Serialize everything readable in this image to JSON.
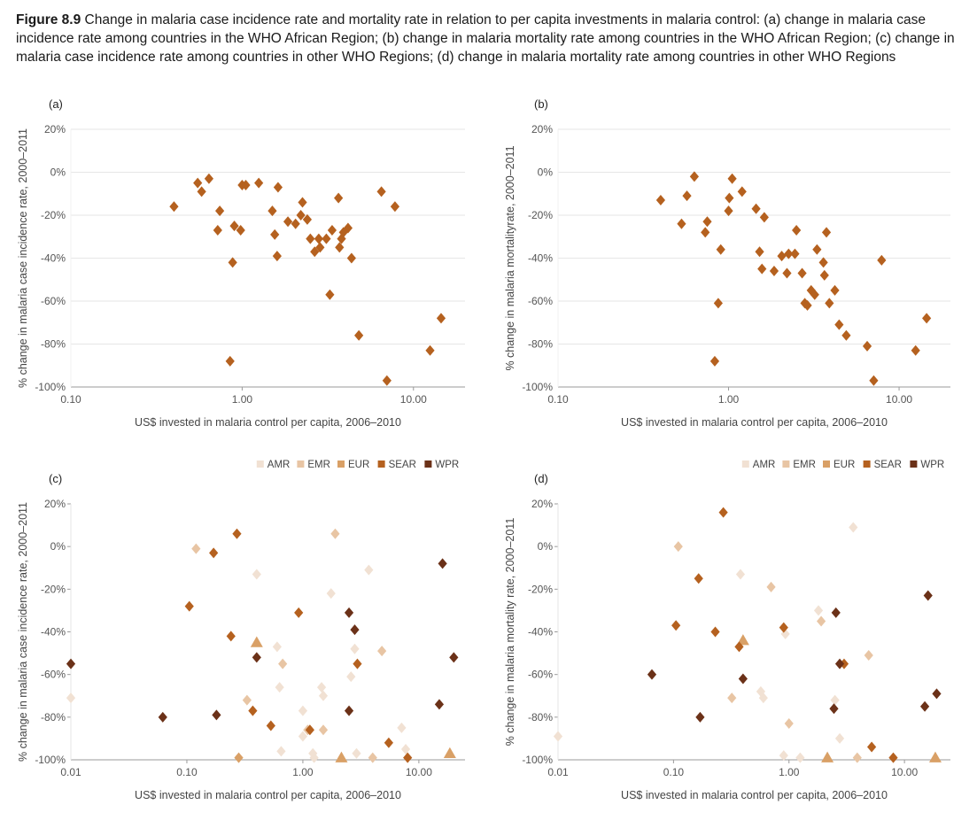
{
  "figure": {
    "number": "Figure 8.9",
    "caption": "Change in malaria case incidence rate and mortality rate in relation to per capita investments in malaria control: (a) change in malaria case incidence rate among countries in the WHO African Region; (b) change in malaria mortality rate among countries in the WHO African Region; (c) change in malaria case incidence rate among countries in other WHO Regions; (d) change in malaria mortality rate among countries in other WHO Regions"
  },
  "colors": {
    "AFR": "#b5611f",
    "AMR": "#f1e1d3",
    "EMR": "#e8c5a4",
    "EUR": "#d9a066",
    "SEAR": "#b5611f",
    "WPR": "#6b3118",
    "grid": "#e6e6e6",
    "axis": "#9a9a9a"
  },
  "legend": [
    {
      "key": "AMR",
      "label": "AMR"
    },
    {
      "key": "EMR",
      "label": "EMR"
    },
    {
      "key": "EUR",
      "label": "EUR"
    },
    {
      "key": "SEAR",
      "label": "SEAR"
    },
    {
      "key": "WPR",
      "label": "WPR"
    }
  ],
  "chart_data": [
    {
      "id": "a",
      "panel_label": "(a)",
      "type": "scatter",
      "xlabel": "US$ invested in malaria control per capita, 2006–2010",
      "ylabel": "% change in malaria case incidence rate, 2000–2011",
      "x_scale": "log",
      "xlim": [
        0.1,
        20
      ],
      "ylim": [
        -100,
        20
      ],
      "xticks": [
        {
          "v": 0.1,
          "label": "0.10"
        },
        {
          "v": 1,
          "label": "1.00"
        },
        {
          "v": 10,
          "label": "10.00"
        }
      ],
      "yticks": [
        {
          "v": 20,
          "label": "20%"
        },
        {
          "v": 0,
          "label": "0%"
        },
        {
          "v": -20,
          "label": "-20%"
        },
        {
          "v": -40,
          "label": "-40%"
        },
        {
          "v": -60,
          "label": "-60%"
        },
        {
          "v": -80,
          "label": "-80%"
        },
        {
          "v": -100,
          "label": "-100%"
        }
      ],
      "grid": true,
      "series": [
        {
          "region": "AFR",
          "shape": "diamond",
          "points": [
            [
              0.4,
              -16
            ],
            [
              0.55,
              -5
            ],
            [
              0.58,
              -9
            ],
            [
              0.64,
              -3
            ],
            [
              0.72,
              -27
            ],
            [
              0.74,
              -18
            ],
            [
              0.85,
              -88
            ],
            [
              0.88,
              -42
            ],
            [
              0.9,
              -25
            ],
            [
              0.98,
              -27
            ],
            [
              1.0,
              -6
            ],
            [
              1.05,
              -6
            ],
            [
              1.25,
              -5
            ],
            [
              1.5,
              -18
            ],
            [
              1.55,
              -29
            ],
            [
              1.6,
              -39
            ],
            [
              1.62,
              -7
            ],
            [
              1.85,
              -23
            ],
            [
              2.05,
              -24
            ],
            [
              2.2,
              -20
            ],
            [
              2.25,
              -14
            ],
            [
              2.4,
              -22
            ],
            [
              2.5,
              -31
            ],
            [
              2.65,
              -37
            ],
            [
              2.8,
              -31
            ],
            [
              2.85,
              -35
            ],
            [
              3.1,
              -31
            ],
            [
              3.25,
              -57
            ],
            [
              3.35,
              -27
            ],
            [
              3.65,
              -12
            ],
            [
              3.7,
              -35
            ],
            [
              3.8,
              -31
            ],
            [
              3.9,
              -28
            ],
            [
              4.15,
              -26
            ],
            [
              4.35,
              -40
            ],
            [
              4.8,
              -76
            ],
            [
              6.5,
              -9
            ],
            [
              7.0,
              -97
            ],
            [
              7.8,
              -16
            ],
            [
              12.5,
              -83
            ],
            [
              14.5,
              -68
            ]
          ]
        }
      ]
    },
    {
      "id": "b",
      "panel_label": "(b)",
      "type": "scatter",
      "xlabel": "US$ invested in malaria control per capita, 2006–2010",
      "ylabel": "% change in malaria mortalityrate, 2000–2011",
      "x_scale": "log",
      "xlim": [
        0.1,
        20
      ],
      "ylim": [
        -100,
        20
      ],
      "xticks": [
        {
          "v": 0.1,
          "label": "0.10"
        },
        {
          "v": 1,
          "label": "1.00"
        },
        {
          "v": 10,
          "label": "10.00"
        }
      ],
      "yticks": [
        {
          "v": 20,
          "label": "20%"
        },
        {
          "v": 0,
          "label": "0%"
        },
        {
          "v": -20,
          "label": "-20%"
        },
        {
          "v": -40,
          "label": "-40%"
        },
        {
          "v": -60,
          "label": "-60%"
        },
        {
          "v": -80,
          "label": "-80%"
        },
        {
          "v": -100,
          "label": "-100%"
        }
      ],
      "grid": true,
      "series": [
        {
          "region": "AFR",
          "shape": "diamond",
          "points": [
            [
              0.4,
              -13
            ],
            [
              0.53,
              -24
            ],
            [
              0.57,
              -11
            ],
            [
              0.63,
              -2
            ],
            [
              0.73,
              -28
            ],
            [
              0.75,
              -23
            ],
            [
              0.83,
              -88
            ],
            [
              0.87,
              -61
            ],
            [
              0.9,
              -36
            ],
            [
              1.0,
              -18
            ],
            [
              1.01,
              -12
            ],
            [
              1.05,
              -3
            ],
            [
              1.2,
              -9
            ],
            [
              1.45,
              -17
            ],
            [
              1.52,
              -37
            ],
            [
              1.57,
              -45
            ],
            [
              1.62,
              -21
            ],
            [
              1.85,
              -46
            ],
            [
              2.05,
              -39
            ],
            [
              2.2,
              -47
            ],
            [
              2.25,
              -38
            ],
            [
              2.45,
              -38
            ],
            [
              2.5,
              -27
            ],
            [
              2.7,
              -47
            ],
            [
              2.8,
              -61
            ],
            [
              2.9,
              -62
            ],
            [
              3.05,
              -55
            ],
            [
              3.2,
              -57
            ],
            [
              3.3,
              -36
            ],
            [
              3.6,
              -42
            ],
            [
              3.65,
              -48
            ],
            [
              3.75,
              -28
            ],
            [
              3.9,
              -61
            ],
            [
              4.2,
              -55
            ],
            [
              4.45,
              -71
            ],
            [
              4.9,
              -76
            ],
            [
              6.5,
              -81
            ],
            [
              7.1,
              -97
            ],
            [
              7.9,
              -41
            ],
            [
              12.5,
              -83
            ],
            [
              14.5,
              -68
            ]
          ]
        }
      ]
    },
    {
      "id": "c",
      "panel_label": "(c)",
      "type": "scatter",
      "xlabel": "US$ invested in malaria control per capita, 2006–2010",
      "ylabel": "% change in malaria case incidence rate, 2000–2011",
      "x_scale": "log",
      "xlim": [
        0.01,
        25
      ],
      "ylim": [
        -100,
        20
      ],
      "xticks": [
        {
          "v": 0.01,
          "label": "0.01"
        },
        {
          "v": 0.1,
          "label": "0.10"
        },
        {
          "v": 1,
          "label": "1.00"
        },
        {
          "v": 10,
          "label": "10.00"
        }
      ],
      "yticks": [
        {
          "v": 20,
          "label": "20%"
        },
        {
          "v": 0,
          "label": "0%"
        },
        {
          "v": -20,
          "label": "-20%"
        },
        {
          "v": -40,
          "label": "-40%"
        },
        {
          "v": -60,
          "label": "-60%"
        },
        {
          "v": -80,
          "label": "-80%"
        },
        {
          "v": -100,
          "label": "-100%"
        }
      ],
      "grid": false,
      "legend_position": "top-right",
      "series": [
        {
          "region": "AMR",
          "shape": "diamond",
          "points": [
            [
              0.01,
              -71
            ],
            [
              0.4,
              -13
            ],
            [
              0.6,
              -47
            ],
            [
              0.63,
              -66
            ],
            [
              0.65,
              -96
            ],
            [
              1.0,
              -77
            ],
            [
              1.0,
              -89
            ],
            [
              1.22,
              -97
            ],
            [
              1.25,
              -99
            ],
            [
              1.45,
              -66
            ],
            [
              1.5,
              -70
            ],
            [
              1.75,
              -22
            ],
            [
              2.6,
              -61
            ],
            [
              2.8,
              -48
            ],
            [
              2.9,
              -97
            ],
            [
              3.7,
              -11
            ],
            [
              7.1,
              -85
            ],
            [
              7.7,
              -95
            ]
          ]
        },
        {
          "region": "EMR",
          "shape": "diamond",
          "points": [
            [
              0.12,
              -1
            ],
            [
              0.33,
              -72
            ],
            [
              0.67,
              -55
            ],
            [
              1.1,
              -86
            ],
            [
              1.5,
              -86
            ],
            [
              1.9,
              6
            ],
            [
              4.0,
              -99
            ],
            [
              4.8,
              -49
            ]
          ]
        },
        {
          "region": "EUR",
          "shape": "triangle",
          "points": [
            [
              0.4,
              -45
            ],
            [
              2.15,
              -99
            ],
            [
              18.5,
              -97
            ]
          ]
        },
        {
          "region": "EUR",
          "shape": "diamond",
          "points": [
            [
              0.28,
              -99
            ]
          ]
        },
        {
          "region": "SEAR",
          "shape": "diamond",
          "points": [
            [
              0.105,
              -28
            ],
            [
              0.17,
              -3
            ],
            [
              0.24,
              -42
            ],
            [
              0.27,
              6
            ],
            [
              0.37,
              -77
            ],
            [
              0.53,
              -84
            ],
            [
              0.92,
              -31
            ],
            [
              1.15,
              -86
            ],
            [
              2.95,
              -55
            ],
            [
              5.5,
              -92
            ],
            [
              8.0,
              -99
            ]
          ]
        },
        {
          "region": "WPR",
          "shape": "diamond",
          "points": [
            [
              0.01,
              -55
            ],
            [
              0.062,
              -80
            ],
            [
              0.18,
              -79
            ],
            [
              0.4,
              -52
            ],
            [
              2.5,
              -31
            ],
            [
              2.5,
              -77
            ],
            [
              2.8,
              -39
            ],
            [
              15.0,
              -74
            ],
            [
              16.0,
              -8
            ],
            [
              20.0,
              -52
            ]
          ]
        }
      ]
    },
    {
      "id": "d",
      "panel_label": "(d)",
      "type": "scatter",
      "xlabel": "US$ invested in malaria control per capita, 2006–2010",
      "ylabel": "% change in malaria mortality rate, 2000–2011",
      "x_scale": "log",
      "xlim": [
        0.01,
        25
      ],
      "ylim": [
        -100,
        20
      ],
      "xticks": [
        {
          "v": 0.01,
          "label": "0.01"
        },
        {
          "v": 0.1,
          "label": "0.10"
        },
        {
          "v": 1,
          "label": "1.00"
        },
        {
          "v": 10,
          "label": "10.00"
        }
      ],
      "yticks": [
        {
          "v": 20,
          "label": "20%"
        },
        {
          "v": 0,
          "label": "0%"
        },
        {
          "v": -20,
          "label": "-20%"
        },
        {
          "v": -40,
          "label": "-40%"
        },
        {
          "v": -60,
          "label": "-60%"
        },
        {
          "v": -80,
          "label": "-80%"
        },
        {
          "v": -100,
          "label": "-100%"
        }
      ],
      "grid": false,
      "legend_position": "top-right",
      "series": [
        {
          "region": "AMR",
          "shape": "diamond",
          "points": [
            [
              0.01,
              -89
            ],
            [
              0.38,
              -13
            ],
            [
              0.57,
              -68
            ],
            [
              0.6,
              -71
            ],
            [
              0.9,
              -98
            ],
            [
              0.93,
              -41
            ],
            [
              1.25,
              -99
            ],
            [
              1.8,
              -30
            ],
            [
              2.5,
              -72
            ],
            [
              2.75,
              -90
            ],
            [
              3.6,
              9
            ]
          ]
        },
        {
          "region": "EMR",
          "shape": "diamond",
          "points": [
            [
              0.11,
              0
            ],
            [
              0.32,
              -71
            ],
            [
              0.7,
              -19
            ],
            [
              1.0,
              -83
            ],
            [
              1.9,
              -35
            ],
            [
              3.9,
              -99
            ],
            [
              4.9,
              -51
            ]
          ]
        },
        {
          "region": "EUR",
          "shape": "triangle",
          "points": [
            [
              0.4,
              -44
            ],
            [
              2.15,
              -99
            ],
            [
              18.5,
              -99
            ]
          ]
        },
        {
          "region": "SEAR",
          "shape": "diamond",
          "points": [
            [
              0.105,
              -37
            ],
            [
              0.165,
              -15
            ],
            [
              0.23,
              -40
            ],
            [
              0.27,
              16
            ],
            [
              0.37,
              -47
            ],
            [
              0.9,
              -38
            ],
            [
              3.0,
              -55
            ],
            [
              5.2,
              -94
            ],
            [
              8.0,
              -99
            ]
          ]
        },
        {
          "region": "WPR",
          "shape": "diamond",
          "points": [
            [
              0.065,
              -60
            ],
            [
              0.17,
              -80
            ],
            [
              0.4,
              -62
            ],
            [
              2.45,
              -76
            ],
            [
              2.55,
              -31
            ],
            [
              2.75,
              -55
            ],
            [
              15.0,
              -75
            ],
            [
              16.0,
              -23
            ],
            [
              19.0,
              -69
            ]
          ]
        }
      ]
    }
  ]
}
